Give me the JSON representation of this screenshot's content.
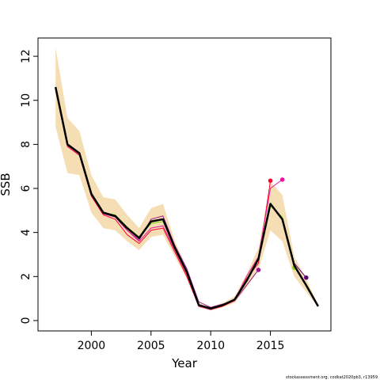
{
  "chart_data": {
    "type": "line",
    "x_label": "Year",
    "y_label": "SSB",
    "footnote": "stockassessment.org, codkat2020pb3, r13959",
    "x": [
      1997,
      1998,
      1999,
      2000,
      2001,
      2002,
      2003,
      2004,
      2005,
      2006,
      2007,
      2008,
      2009,
      2010,
      2011,
      2012,
      2013,
      2014,
      2015,
      2016,
      2017,
      2018,
      2019
    ],
    "xlim": [
      1995.53,
      2020.07
    ],
    "xticks": [
      2000,
      2005,
      2010,
      2015
    ],
    "ylim": [
      -0.47,
      12.83
    ],
    "yticks": [
      0,
      2,
      4,
      6,
      8,
      10,
      12
    ],
    "band": {
      "color": "#f5deb3",
      "upper": [
        12.4,
        9.2,
        8.6,
        6.6,
        5.6,
        5.5,
        4.8,
        4.2,
        5.1,
        5.3,
        3.6,
        2.4,
        0.8,
        0.6,
        0.8,
        1.1,
        2.1,
        3.3,
        6.3,
        5.7,
        2.9,
        1.9,
        0.7
      ],
      "lower": [
        8.8,
        6.7,
        6.6,
        4.9,
        4.2,
        4.1,
        3.6,
        3.2,
        3.8,
        3.9,
        2.9,
        1.9,
        0.6,
        0.45,
        0.6,
        0.8,
        1.5,
        2.3,
        4.1,
        3.6,
        2.0,
        1.3,
        0.6
      ]
    },
    "series": [
      {
        "color": "#9b1a8f",
        "values": [
          10.55,
          7.95,
          7.55,
          5.7,
          4.85,
          4.7,
          4.1,
          3.65,
          4.6,
          4.75,
          3.4,
          2.35,
          0.85,
          0.6,
          0.75,
          0.9,
          1.6,
          2.3,
          null,
          null,
          null,
          null,
          null
        ]
      },
      {
        "color": "#ff0033",
        "values": [
          10.5,
          7.9,
          7.5,
          5.65,
          4.8,
          4.6,
          3.9,
          3.5,
          4.1,
          4.2,
          3.1,
          2.0,
          0.65,
          0.5,
          0.65,
          0.9,
          1.9,
          2.6,
          6.35,
          null,
          null,
          null,
          null
        ]
      },
      {
        "color": "#e6179c",
        "values": [
          10.6,
          8.0,
          7.6,
          5.75,
          4.9,
          4.75,
          4.1,
          3.6,
          4.2,
          4.3,
          3.2,
          2.1,
          0.65,
          0.5,
          0.68,
          0.92,
          2.0,
          2.9,
          6.0,
          6.4,
          null,
          null,
          null
        ]
      },
      {
        "color": "#8cd600",
        "values": [
          10.6,
          8.0,
          7.6,
          5.75,
          4.9,
          4.8,
          4.25,
          3.8,
          4.4,
          4.5,
          3.3,
          2.2,
          0.7,
          0.55,
          0.7,
          0.95,
          1.85,
          2.85,
          5.2,
          4.7,
          2.4,
          null,
          null
        ]
      },
      {
        "color": "#5a007a",
        "values": [
          10.6,
          8.0,
          7.6,
          5.75,
          4.9,
          4.75,
          4.2,
          3.75,
          4.5,
          4.6,
          3.3,
          2.2,
          0.7,
          0.55,
          0.7,
          0.95,
          1.8,
          2.8,
          5.3,
          4.6,
          2.6,
          1.95,
          null
        ]
      },
      {
        "color": "#000000",
        "main": true,
        "values": [
          10.6,
          8.0,
          7.6,
          5.75,
          4.9,
          4.75,
          4.2,
          3.75,
          4.5,
          4.6,
          3.3,
          2.2,
          0.7,
          0.55,
          0.7,
          0.95,
          1.8,
          2.8,
          5.3,
          4.6,
          2.5,
          1.6,
          0.65
        ]
      }
    ]
  }
}
